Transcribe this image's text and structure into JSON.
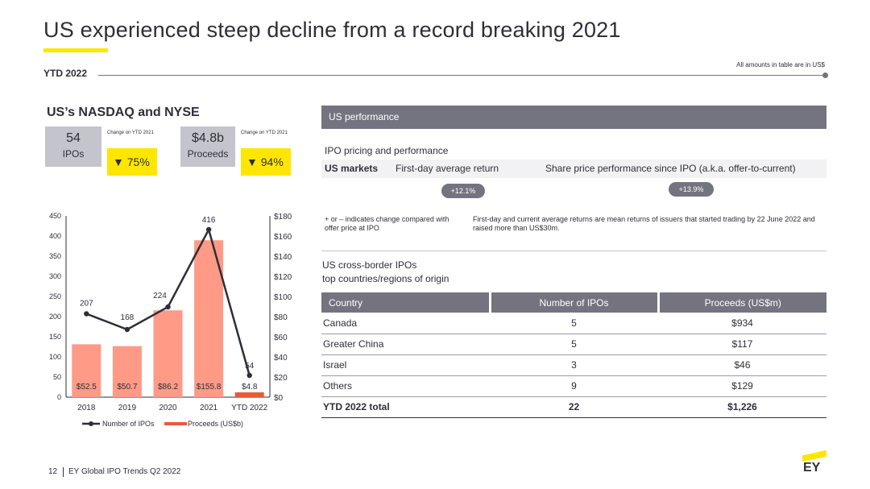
{
  "header": {
    "title": "US experienced steep decline from a record breaking 2021",
    "period": "YTD 2022",
    "amounts_note": "All amounts in table are in US$"
  },
  "left": {
    "subtitle": "US’s NASDAQ and NYSE",
    "change_label": "Change on YTD 2021",
    "ipos": {
      "value": "54",
      "label": "IPOs",
      "change": "▼ 75%"
    },
    "proceeds": {
      "value": "$4.8b",
      "label": "Proceeds",
      "change": "▼ 94%"
    }
  },
  "chart_data": {
    "type": "bar",
    "categories": [
      "2018",
      "2019",
      "2020",
      "2021",
      "YTD 2022"
    ],
    "series": [
      {
        "name": "Number of IPOs",
        "type": "line",
        "axis": "left",
        "values": [
          207,
          168,
          224,
          416,
          54
        ],
        "labels": [
          "207",
          "168",
          "224",
          "416",
          "54"
        ]
      },
      {
        "name": "Proceeds (US$b)",
        "type": "bar",
        "axis": "right",
        "values": [
          52.5,
          50.7,
          86.2,
          155.8,
          4.8
        ],
        "labels": [
          "$52.5",
          "$50.7",
          "$86.2",
          "$155.8",
          "$4.8"
        ]
      }
    ],
    "left_axis": {
      "min": 0,
      "max": 450,
      "ticks": [
        "0",
        "50",
        "100",
        "150",
        "200",
        "250",
        "300",
        "350",
        "400",
        "450"
      ]
    },
    "right_axis": {
      "min": 0,
      "max": 180,
      "ticks": [
        "$0",
        "$20",
        "$40",
        "$60",
        "$80",
        "$100",
        "$120",
        "$140",
        "$160",
        "$180"
      ]
    },
    "legend_position": "bottom",
    "colors": {
      "bar": "#ff9a87",
      "bar_last": "#ea5a3a",
      "line": "#2e2e38"
    }
  },
  "right": {
    "panel_title": "US performance",
    "pricing_title": "IPO pricing and performance",
    "markets_label": "US markets",
    "first_day_label": "First-day average return",
    "share_price_label": "Share price performance since IPO (a.k.a. offer-to-current)",
    "first_day_change": "+12.1%",
    "share_price_change": "+13.9%",
    "note_left": "+ or – indicates change compared with offer price at IPO",
    "note_right": "First-day and current average returns are mean returns of issuers that started trading by 22 June 2022 and raised more than US$30m.",
    "cross_border_title": "US cross-border IPOs",
    "cross_border_sub": "top countries/regions of origin",
    "table": {
      "headers": [
        "Country",
        "Number of IPOs",
        "Proceeds (US$m)"
      ],
      "rows": [
        [
          "Canada",
          "5",
          "$934"
        ],
        [
          "Greater China",
          "5",
          "$117"
        ],
        [
          "Israel",
          "3",
          "$46"
        ],
        [
          "Others",
          "9",
          "$129"
        ]
      ],
      "total": [
        "YTD 2022 total",
        "22",
        "$1,226"
      ]
    }
  },
  "footer": {
    "page": "12",
    "source": "EY Global IPO Trends Q2 2022",
    "logo": "EY"
  }
}
